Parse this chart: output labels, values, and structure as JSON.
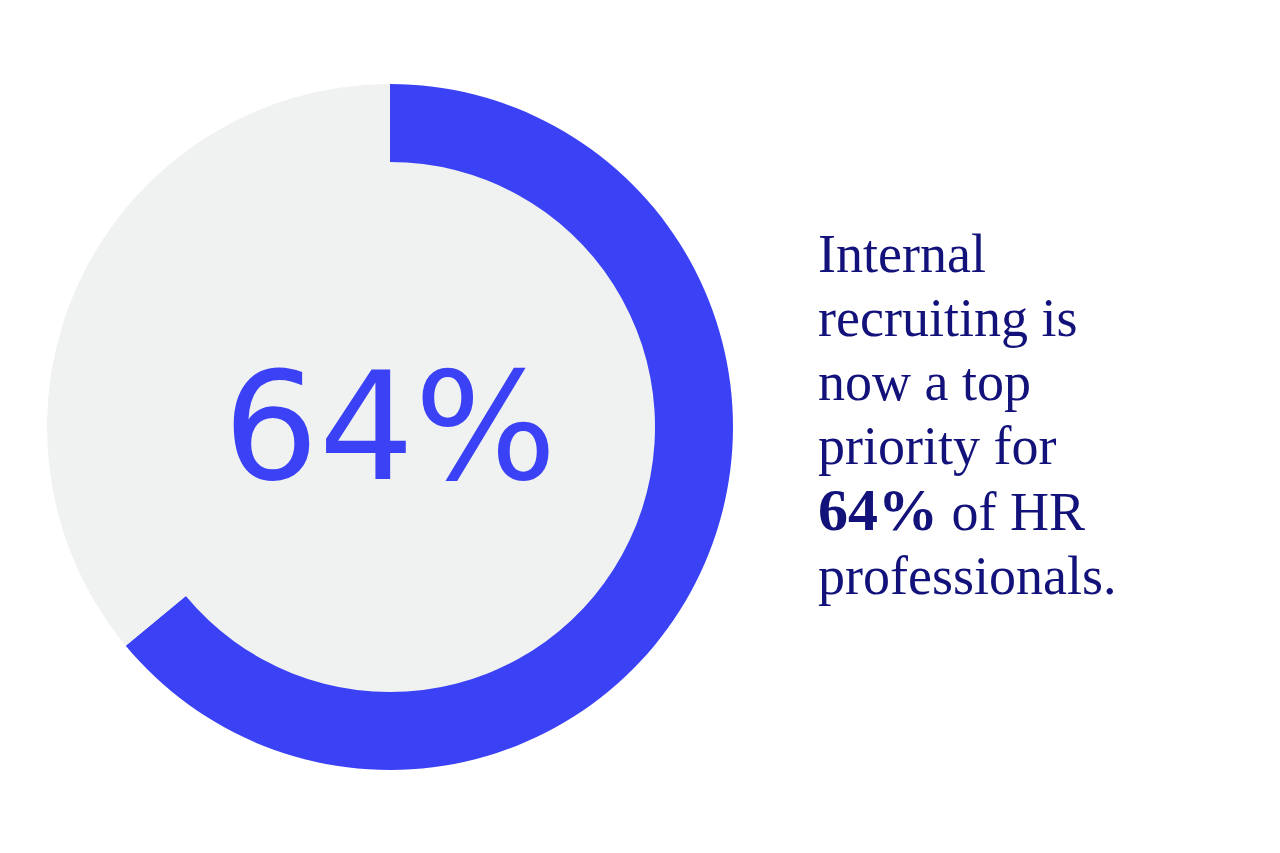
{
  "chart_data": {
    "type": "donut",
    "categories": [
      null,
      null
    ],
    "values": [
      64,
      36
    ],
    "colors": [
      "#3b42f6",
      "#f0f1f1"
    ],
    "annotations": [
      "64%",
      "Internal recruiting is now a top priority for 64% of HR professionals."
    ]
  }
}
